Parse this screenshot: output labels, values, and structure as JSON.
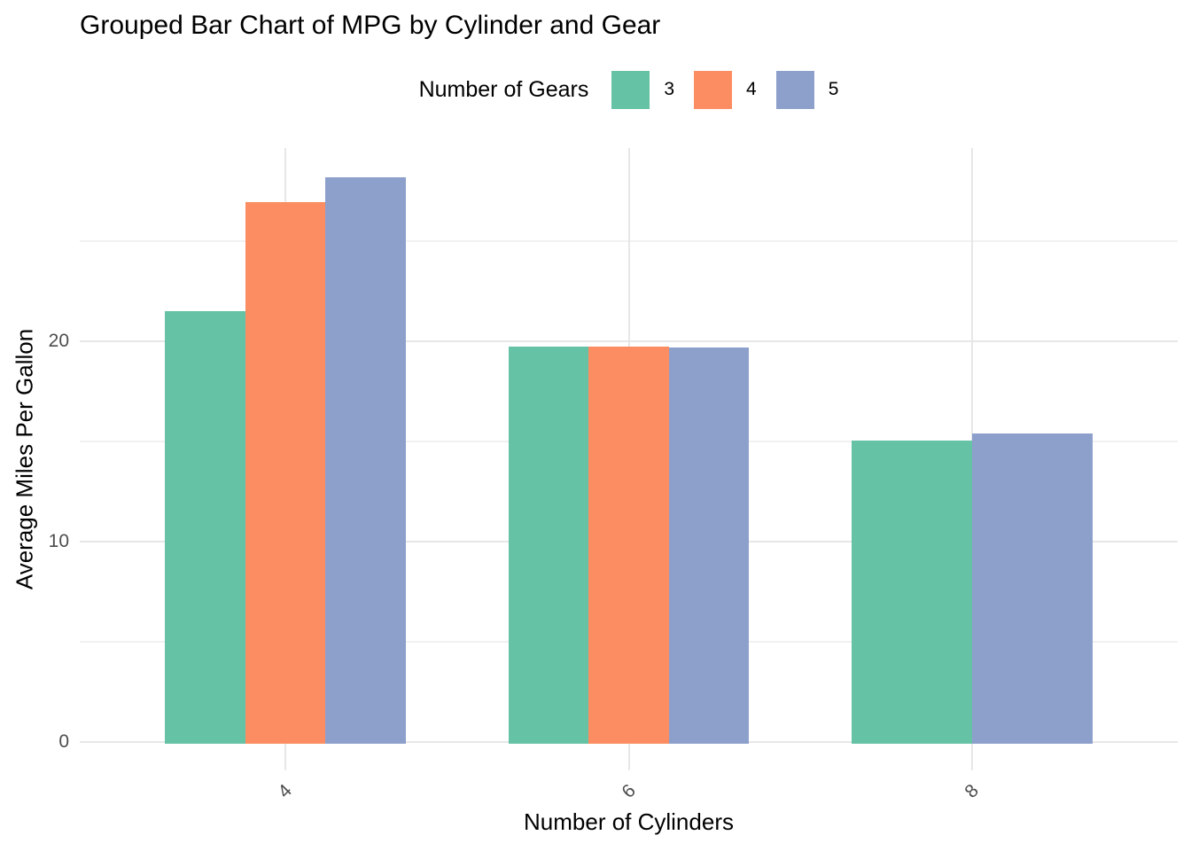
{
  "chart_data": {
    "type": "bar",
    "title": "Grouped Bar Chart of MPG by Cylinder and Gear",
    "xlabel": "Number of Cylinders",
    "ylabel": "Average Miles Per Gallon",
    "legend": {
      "title": "Number of Gears",
      "position": "top",
      "entries": [
        "3",
        "4",
        "5"
      ]
    },
    "categories": [
      "4",
      "6",
      "8"
    ],
    "series": [
      {
        "name": "3",
        "color": "#66C2A5",
        "values": [
          21.5,
          19.75,
          15.05
        ]
      },
      {
        "name": "4",
        "color": "#FC8D62",
        "values": [
          26.93,
          19.75,
          null
        ]
      },
      {
        "name": "5",
        "color": "#8DA0CB",
        "values": [
          28.2,
          19.7,
          15.4
        ]
      }
    ],
    "y_axis": {
      "ticks_major": [
        0,
        10,
        20
      ],
      "ticks_minor": [
        5,
        15,
        25
      ],
      "ylim": [
        0,
        29.6
      ]
    },
    "x_axis": {
      "tick_angle_deg": 45
    },
    "grid": {
      "show": true,
      "color_major": "#E7E7E7",
      "color_minor": "#F1F1F1"
    },
    "colors": {
      "background": "#FFFFFF",
      "tick_label": "#4D4D4D",
      "text": "#000000"
    }
  }
}
